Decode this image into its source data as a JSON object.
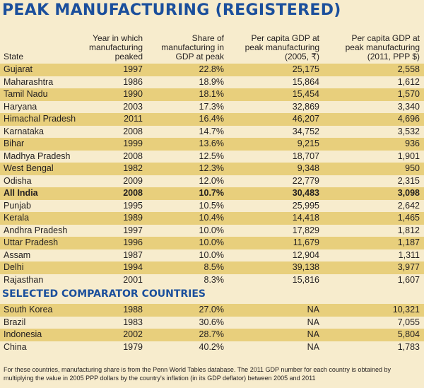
{
  "title": "PEAK MANUFACTURING (REGISTERED)",
  "headers": {
    "state": "State",
    "year": [
      "Year in which",
      "manufacturing",
      "peaked"
    ],
    "share": [
      "Share of",
      "manufacturing in",
      "GDP at peak"
    ],
    "gdp2005": [
      "Per capita GDP at",
      "peak manufacturing",
      "(2005, ₹)"
    ],
    "gdp2011": [
      "Per capita GDP at",
      "peak manufacturing",
      "(2011, PPP $)"
    ]
  },
  "rows": [
    {
      "state": "Gujarat",
      "year": "1997",
      "share": "22.8%",
      "gdp2005": "25,175",
      "gdp2011": "2,558",
      "tint": true
    },
    {
      "state": "Maharashtra",
      "year": "1986",
      "share": "18.9%",
      "gdp2005": "15,864",
      "gdp2011": "1,612",
      "tint": false
    },
    {
      "state": "Tamil Nadu",
      "year": "1990",
      "share": "18.1%",
      "gdp2005": "15,454",
      "gdp2011": "1,570",
      "tint": true
    },
    {
      "state": "Haryana",
      "year": "2003",
      "share": "17.3%",
      "gdp2005": "32,869",
      "gdp2011": "3,340",
      "tint": false
    },
    {
      "state": "Himachal Pradesh",
      "year": "2011",
      "share": "16.4%",
      "gdp2005": "46,207",
      "gdp2011": "4,696",
      "tint": true
    },
    {
      "state": "Karnataka",
      "year": "2008",
      "share": "14.7%",
      "gdp2005": "34,752",
      "gdp2011": "3,532",
      "tint": false
    },
    {
      "state": "Bihar",
      "year": "1999",
      "share": "13.6%",
      "gdp2005": "9,215",
      "gdp2011": "936",
      "tint": true
    },
    {
      "state": "Madhya Pradesh",
      "year": "2008",
      "share": "12.5%",
      "gdp2005": "18,707",
      "gdp2011": "1,901",
      "tint": false
    },
    {
      "state": "West Bengal",
      "year": "1982",
      "share": "12.3%",
      "gdp2005": "9,348",
      "gdp2011": "950",
      "tint": true
    },
    {
      "state": "Odisha",
      "year": "2009",
      "share": "12.0%",
      "gdp2005": "22,779",
      "gdp2011": "2,315",
      "tint": false
    },
    {
      "state": "All India",
      "year": "2008",
      "share": "10.7%",
      "gdp2005": "30,483",
      "gdp2011": "3,098",
      "tint": true,
      "bold": true
    },
    {
      "state": "Punjab",
      "year": "1995",
      "share": "10.5%",
      "gdp2005": "25,995",
      "gdp2011": "2,642",
      "tint": false
    },
    {
      "state": "Kerala",
      "year": "1989",
      "share": "10.4%",
      "gdp2005": "14,418",
      "gdp2011": "1,465",
      "tint": true
    },
    {
      "state": "Andhra Pradesh",
      "year": "1997",
      "share": "10.0%",
      "gdp2005": "17,829",
      "gdp2011": "1,812",
      "tint": false
    },
    {
      "state": "Uttar Pradesh",
      "year": "1996",
      "share": "10.0%",
      "gdp2005": "11,679",
      "gdp2011": "1,187",
      "tint": true
    },
    {
      "state": "Assam",
      "year": "1987",
      "share": "10.0%",
      "gdp2005": "12,904",
      "gdp2011": "1,311",
      "tint": false
    },
    {
      "state": "Delhi",
      "year": "1994",
      "share": "8.5%",
      "gdp2005": "39,138",
      "gdp2011": "3,977",
      "tint": true
    },
    {
      "state": "Rajasthan",
      "year": "2001",
      "share": "8.3%",
      "gdp2005": "15,816",
      "gdp2011": "1,607",
      "tint": false
    }
  ],
  "comparator_title": "SELECTED COMPARATOR COUNTRIES",
  "countries": [
    {
      "state": "South Korea",
      "year": "1988",
      "share": "27.0%",
      "gdp2005": "NA",
      "gdp2011": "10,321",
      "tint": true
    },
    {
      "state": "Brazil",
      "year": "1983",
      "share": "30.6%",
      "gdp2005": "NA",
      "gdp2011": "7,055",
      "tint": false
    },
    {
      "state": "Indonesia",
      "year": "2002",
      "share": "28.7%",
      "gdp2005": "NA",
      "gdp2011": "5,804",
      "tint": true
    },
    {
      "state": "China",
      "year": "1979",
      "share": "40.2%",
      "gdp2005": "NA",
      "gdp2011": "1,783",
      "tint": false
    }
  ],
  "note": "For these countries, manufacturing share is from the Penn World Tables database. The 2011 GDP number for each country is obtained by multiplying the value in 2005 PPP dollars by the country's inflation (in its GDP deflator) between 2005 and 2011"
}
